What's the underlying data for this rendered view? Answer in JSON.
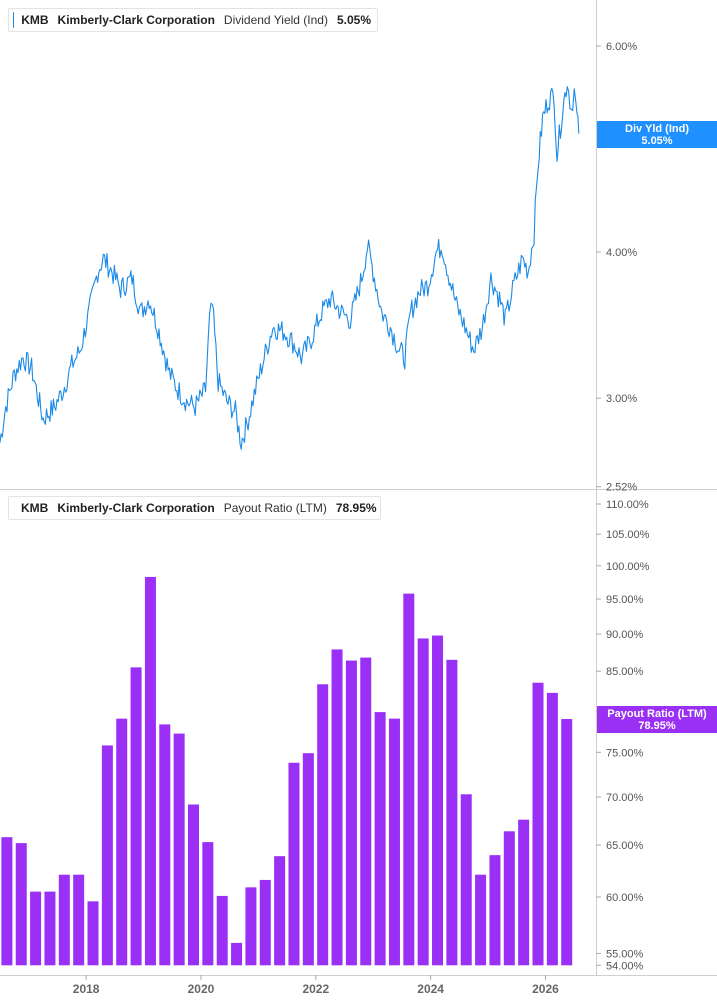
{
  "colors": {
    "yield_line": "#1a8ae6",
    "yield_tag": "#1e90ff",
    "payout_bar": "#9a2ff5",
    "payout_tag": "#9b30f5"
  },
  "top_legend": {
    "ticker": "KMB",
    "company": "Kimberly-Clark Corporation",
    "metric": "Dividend Yield (Ind)",
    "value": "5.05%"
  },
  "bottom_legend": {
    "ticker": "KMB",
    "company": "Kimberly-Clark Corporation",
    "metric": "Payout Ratio (LTM)",
    "value": "78.95%"
  },
  "top_tag": {
    "label": "Div Yld (Ind)",
    "value": "5.05%"
  },
  "bottom_tag": {
    "label": "Payout Ratio (LTM)",
    "value": "78.95%"
  },
  "x_ticks": [
    "2018",
    "2020",
    "2022",
    "2024",
    "2026"
  ],
  "chart_data": [
    {
      "type": "line",
      "name": "Dividend Yield (Ind)",
      "scale": "log",
      "ylim": [
        2.52,
        6.2
      ],
      "y_ticks": [
        "6.00%",
        "4.00%",
        "3.00%",
        "2.52%"
      ],
      "y_tick_values": [
        6.0,
        4.0,
        3.0,
        2.52
      ],
      "points": [
        [
          2016.5,
          2.75
        ],
        [
          2016.6,
          2.95
        ],
        [
          2016.75,
          3.15
        ],
        [
          2016.9,
          3.25
        ],
        [
          2017.05,
          3.18
        ],
        [
          2017.25,
          2.88
        ],
        [
          2017.45,
          2.95
        ],
        [
          2017.6,
          3.05
        ],
        [
          2017.75,
          3.2
        ],
        [
          2017.9,
          3.3
        ],
        [
          2018.05,
          3.55
        ],
        [
          2018.2,
          3.85
        ],
        [
          2018.3,
          3.95
        ],
        [
          2018.45,
          3.85
        ],
        [
          2018.6,
          3.72
        ],
        [
          2018.8,
          3.8
        ],
        [
          2018.95,
          3.55
        ],
        [
          2019.1,
          3.65
        ],
        [
          2019.25,
          3.45
        ],
        [
          2019.45,
          3.15
        ],
        [
          2019.6,
          3.05
        ],
        [
          2019.75,
          2.98
        ],
        [
          2019.9,
          2.95
        ],
        [
          2020.08,
          3.05
        ],
        [
          2020.15,
          3.5
        ],
        [
          2020.2,
          3.6
        ],
        [
          2020.3,
          3.1
        ],
        [
          2020.45,
          2.98
        ],
        [
          2020.6,
          2.92
        ],
        [
          2020.7,
          2.75
        ],
        [
          2020.8,
          2.85
        ],
        [
          2020.95,
          3.05
        ],
        [
          2021.1,
          3.25
        ],
        [
          2021.25,
          3.45
        ],
        [
          2021.45,
          3.42
        ],
        [
          2021.6,
          3.35
        ],
        [
          2021.75,
          3.25
        ],
        [
          2021.9,
          3.35
        ],
        [
          2022.1,
          3.55
        ],
        [
          2022.25,
          3.65
        ],
        [
          2022.45,
          3.55
        ],
        [
          2022.6,
          3.5
        ],
        [
          2022.8,
          3.8
        ],
        [
          2022.9,
          4.05
        ],
        [
          2023.0,
          3.85
        ],
        [
          2023.15,
          3.55
        ],
        [
          2023.3,
          3.45
        ],
        [
          2023.45,
          3.3
        ],
        [
          2023.55,
          3.25
        ],
        [
          2023.65,
          3.55
        ],
        [
          2023.8,
          3.7
        ],
        [
          2023.95,
          3.75
        ],
        [
          2024.1,
          4.0
        ],
        [
          2024.2,
          4.05
        ],
        [
          2024.3,
          3.85
        ],
        [
          2024.45,
          3.6
        ],
        [
          2024.6,
          3.45
        ],
        [
          2024.75,
          3.3
        ],
        [
          2024.9,
          3.45
        ],
        [
          2025.05,
          3.8
        ],
        [
          2025.2,
          3.65
        ],
        [
          2025.3,
          3.5
        ],
        [
          2025.45,
          3.75
        ],
        [
          2025.6,
          3.95
        ],
        [
          2025.7,
          3.85
        ],
        [
          2025.8,
          4.15
        ],
        [
          2025.87,
          4.75
        ],
        [
          2025.95,
          5.2
        ],
        [
          2026.05,
          5.4
        ],
        [
          2026.15,
          5.45
        ],
        [
          2026.2,
          4.85
        ],
        [
          2026.3,
          5.3
        ],
        [
          2026.38,
          5.6
        ],
        [
          2026.45,
          5.3
        ],
        [
          2026.5,
          5.5
        ],
        [
          2026.55,
          5.2
        ],
        [
          2026.58,
          5.05
        ]
      ]
    },
    {
      "type": "bar",
      "name": "Payout Ratio (LTM)",
      "scale": "log",
      "ylim": [
        54,
        112
      ],
      "y_ticks": [
        "110.00%",
        "105.00%",
        "100.00%",
        "95.00%",
        "90.00%",
        "85.00%",
        "80.00%",
        "75.00%",
        "70.00%",
        "65.00%",
        "60.00%",
        "55.00%",
        "54.00%"
      ],
      "y_tick_values": [
        110,
        105,
        100,
        95,
        90,
        85,
        80,
        75,
        70,
        65,
        60,
        55,
        54
      ],
      "x": [
        2016.5,
        2016.75,
        2017.0,
        2017.25,
        2017.5,
        2017.75,
        2018.0,
        2018.25,
        2018.5,
        2018.75,
        2019.0,
        2019.25,
        2019.5,
        2019.75,
        2020.0,
        2020.25,
        2020.5,
        2020.75,
        2021.0,
        2021.25,
        2021.5,
        2021.75,
        2022.0,
        2022.25,
        2022.5,
        2022.75,
        2023.0,
        2023.25,
        2023.5,
        2023.75,
        2024.0,
        2024.25,
        2024.5,
        2024.75,
        2025.0,
        2025.25,
        2025.5,
        2025.75,
        2026.0,
        2026.25
      ],
      "values": [
        65.8,
        65.2,
        60.5,
        60.5,
        62.1,
        62.1,
        59.6,
        75.8,
        79.0,
        85.5,
        98.3,
        78.3,
        77.2,
        69.2,
        65.3,
        60.1,
        55.9,
        60.9,
        61.6,
        63.9,
        73.8,
        74.9,
        83.3,
        87.9,
        86.4,
        86.8,
        79.8,
        79.0,
        95.8,
        89.4,
        89.8,
        86.5,
        70.3,
        62.1,
        64.0,
        66.4,
        67.6,
        83.5,
        82.2,
        78.95
      ]
    }
  ]
}
